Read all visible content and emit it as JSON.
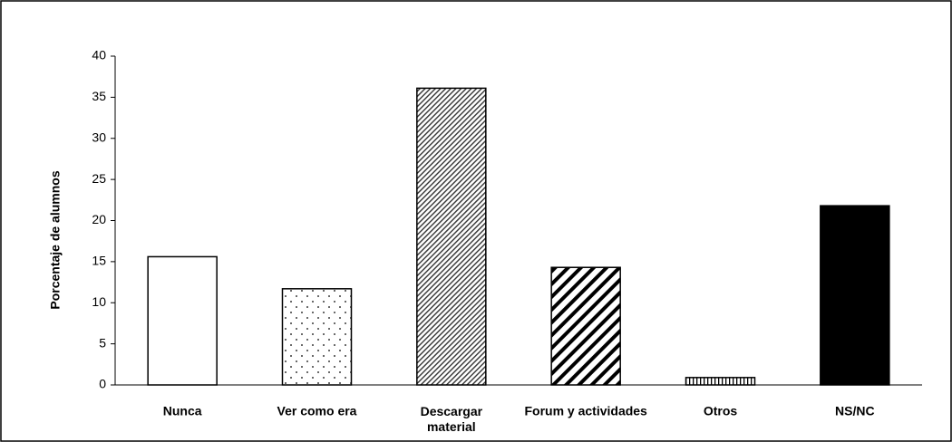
{
  "chart_data": {
    "type": "bar",
    "y_label": "Porcentaje de alumnos",
    "categories": [
      "Nunca",
      "Ver como era",
      "Descargar material",
      "Forum y actividades",
      "Otros",
      "NS/NC"
    ],
    "values": [
      15.6,
      11.7,
      36.1,
      14.3,
      0.9,
      21.8
    ],
    "color": "#000000",
    "ylim": [
      0,
      40
    ],
    "yticks": [
      0,
      5,
      10,
      15,
      20,
      25,
      30,
      35,
      40
    ],
    "grid": false
  }
}
